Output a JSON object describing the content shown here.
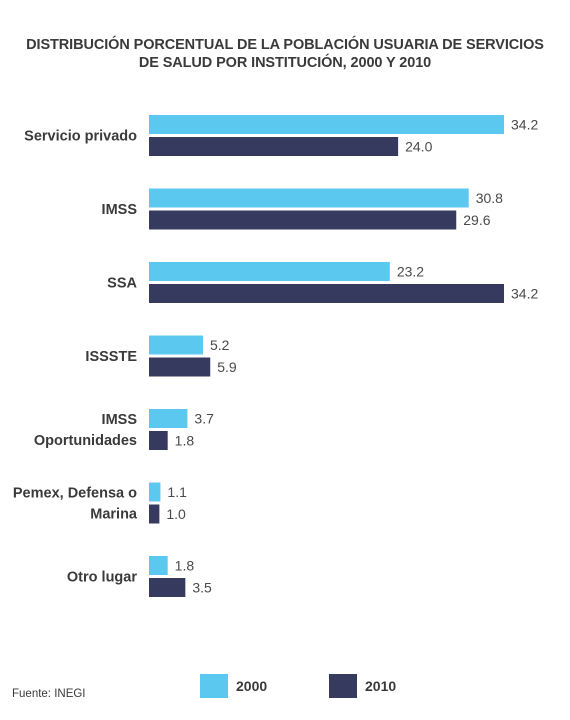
{
  "chart_data": {
    "type": "bar",
    "orientation": "horizontal",
    "title_lines": [
      "DISTRIBUCIÓN PORCENTUAL DE LA POBLACIÓN USUARIA DE SERVICIOS",
      "DE SALUD POR INSTITUCIÓN, 2000 Y 2010"
    ],
    "categories": [
      [
        "Servicio privado"
      ],
      [
        "IMSS"
      ],
      [
        "SSA"
      ],
      [
        "ISSSTE"
      ],
      [
        "IMSS",
        "Oportunidades"
      ],
      [
        "Pemex, Defensa o",
        "Marina"
      ],
      [
        "Otro lugar"
      ]
    ],
    "series": [
      {
        "name": "2000",
        "color": "#5bc8ef",
        "values": [
          34.2,
          30.8,
          23.2,
          5.2,
          3.7,
          1.1,
          1.8
        ],
        "labels": [
          "34.2",
          "30.8",
          "23.2",
          "5.2",
          "3.7",
          "1.1",
          "1.8"
        ]
      },
      {
        "name": "2010",
        "color": "#363a5e",
        "values": [
          24.0,
          29.6,
          34.2,
          5.9,
          1.8,
          1.0,
          3.5
        ],
        "labels": [
          "24.0",
          "29.6",
          "34.2",
          "5.9",
          "1.8",
          "1.0",
          "3.5"
        ]
      }
    ],
    "xlim": [
      0,
      34.2
    ],
    "grid": false,
    "legend_position": "bottom"
  },
  "source": "Fuente: INEGI"
}
